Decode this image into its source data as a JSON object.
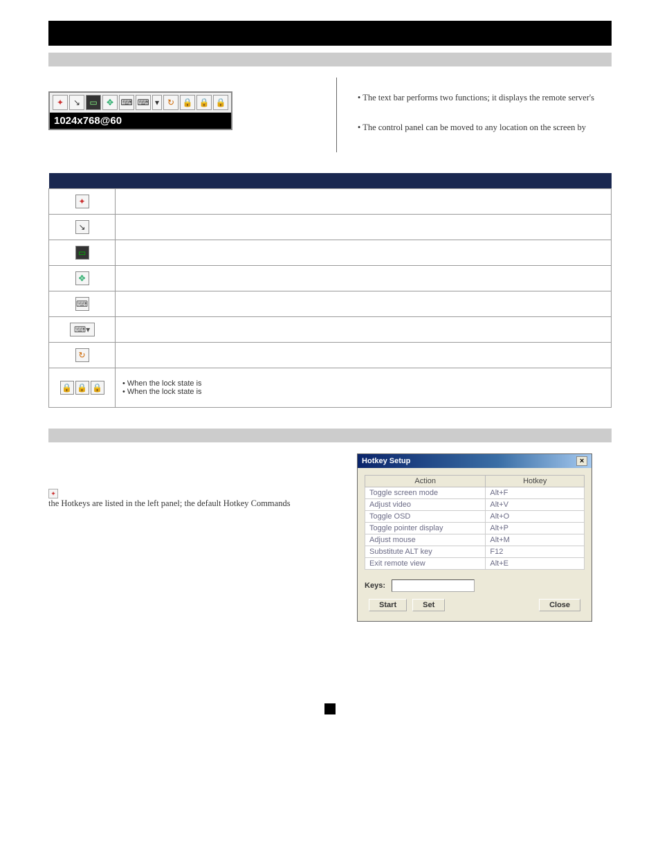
{
  "page": {
    "number": ""
  },
  "twocol": {
    "resolution": "1024x768@60",
    "bullet1": "The text bar performs two functions; it displays the remote server's",
    "bullet2": "The control panel can be moved to any location on the screen by"
  },
  "cp_icons": [
    {
      "name": "hotkeys-icon",
      "glyph": "✦",
      "bg": "#f5f5f5"
    },
    {
      "name": "tools-icon",
      "glyph": "↘",
      "bg": "#f5f5f5"
    },
    {
      "name": "video-icon",
      "glyph": "▭",
      "bg": "#444",
      "fg": "#8f8"
    },
    {
      "name": "screen-icon",
      "glyph": "✥",
      "bg": "#f5f5f5",
      "fg": "#2a6"
    },
    {
      "name": "ctrl-alt-del-icon",
      "glyph": "⌨",
      "bg": "#f5f5f5"
    },
    {
      "name": "keyboard-icon",
      "glyph": "⌨",
      "bg": "#f5f5f5"
    },
    {
      "name": "dropdown-icon",
      "glyph": "▾",
      "bg": "#f5f5f5"
    },
    {
      "name": "refresh-icon",
      "glyph": "↻",
      "bg": "#f5f5f5",
      "fg": "#c60"
    },
    {
      "name": "lock-a-icon",
      "glyph": "🔒",
      "bg": "#f5f5f5",
      "fg": "#cc9900"
    },
    {
      "name": "lock-b-icon",
      "glyph": "🔒",
      "bg": "#f5f5f5",
      "fg": "#cc9900"
    },
    {
      "name": "lock-c-icon",
      "glyph": "🔒",
      "bg": "#f5f5f5",
      "fg": "#cc9900"
    }
  ],
  "table_rows": [
    {
      "icon": "hotkeys-icon",
      "glyph": "✦",
      "iconfg": "#c33",
      "desc": ""
    },
    {
      "icon": "tools-icon",
      "glyph": "↘",
      "iconfg": "#333",
      "desc": ""
    },
    {
      "icon": "video-icon",
      "glyph": "▭",
      "iconfg": "#0b0",
      "desc": "",
      "bg": "#333"
    },
    {
      "icon": "screen-icon",
      "glyph": "✥",
      "iconfg": "#2a6",
      "desc": ""
    },
    {
      "icon": "ctrl-alt-del-icon",
      "glyph": "⌨",
      "iconfg": "#555",
      "desc": ""
    },
    {
      "icon": "keyboard-dropdown-icon",
      "glyph": "⌨▾",
      "iconfg": "#555",
      "desc": "",
      "wide": true
    },
    {
      "icon": "refresh-icon",
      "glyph": "↻",
      "iconfg": "#c60",
      "desc": ""
    }
  ],
  "lock_row": {
    "line1": "• When the lock state is",
    "line2": "• When the lock state is"
  },
  "hotkey_text": {
    "line1_suffix": "the Hotkeys are listed in the left panel; the default Hotkey Commands"
  },
  "dialog": {
    "title": "Hotkey Setup",
    "cols": [
      "Action",
      "Hotkey"
    ],
    "rows": [
      [
        "Toggle screen mode",
        "Alt+F"
      ],
      [
        "Adjust video",
        "Alt+V"
      ],
      [
        "Toggle OSD",
        "Alt+O"
      ],
      [
        "Toggle pointer display",
        "Alt+P"
      ],
      [
        "Adjust mouse",
        "Alt+M"
      ],
      [
        "Substitute ALT key",
        "F12"
      ],
      [
        "Exit remote view",
        "Alt+E"
      ]
    ],
    "keys_label": "Keys:",
    "buttons": [
      "Start",
      "Set",
      "Close"
    ]
  }
}
